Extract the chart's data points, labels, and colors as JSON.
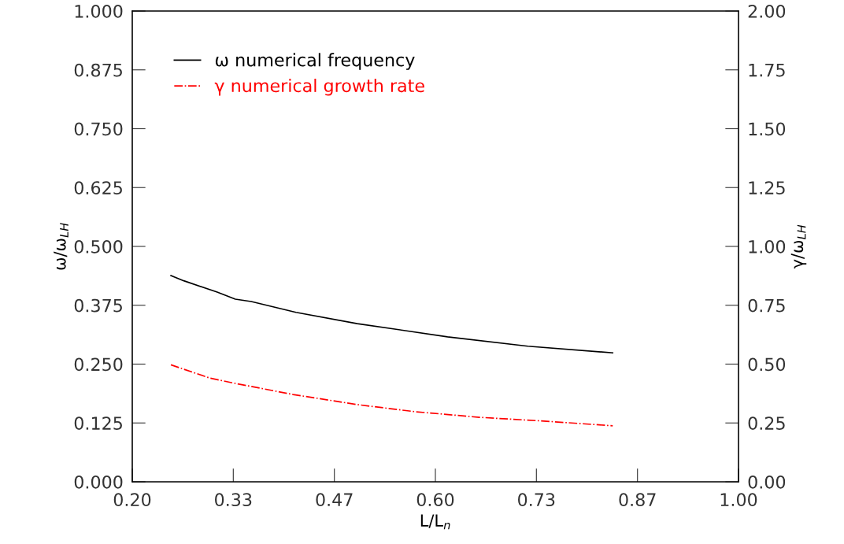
{
  "chart_data": {
    "type": "line",
    "xlabel": "L/L$_{n}$",
    "ylabel": "ω/ω$_{LH}$",
    "y2label": "γ/ω$_{LH}$",
    "xlim": [
      0.2,
      1.0
    ],
    "xticks": [
      {
        "value": 0.2,
        "label": "0.20"
      },
      {
        "value": 0.3333,
        "label": "0.33"
      },
      {
        "value": 0.4667,
        "label": "0.47"
      },
      {
        "value": 0.6,
        "label": "0.60"
      },
      {
        "value": 0.7333,
        "label": "0.73"
      },
      {
        "value": 0.8667,
        "label": "0.87"
      },
      {
        "value": 1.0,
        "label": "1.00"
      }
    ],
    "ylim": [
      0,
      1
    ],
    "yticks": [
      {
        "value": 0,
        "label": "0.000"
      },
      0.125,
      {
        "value": 0.25,
        "label": "0.250"
      },
      0.375,
      {
        "value": 0.5,
        "label": "0.500"
      },
      0.625,
      {
        "value": 0.75,
        "label": "0.750"
      },
      0.875,
      {
        "value": 1.0,
        "label": "1.000"
      }
    ],
    "y2lim": [
      0,
      2
    ],
    "y2ticks": [
      {
        "value": 0,
        "label": "0.00"
      },
      0.25,
      {
        "value": 0.5,
        "label": "0.50"
      },
      0.75,
      {
        "value": 1.0,
        "label": "1.00"
      },
      1.25,
      {
        "value": 1.5,
        "label": "1.50"
      },
      1.75,
      {
        "value": 2.0,
        "label": "2.00"
      }
    ],
    "legend": "top left",
    "grid": false,
    "series": [
      {
        "name": "ω numerical frequency",
        "color": "#000000",
        "line_style": "solid",
        "x": [
          0.251,
          0.268,
          0.312,
          0.336,
          0.357,
          0.416,
          0.497,
          0.616,
          0.722,
          0.834
        ],
        "values": [
          0.438,
          0.427,
          0.403,
          0.388,
          0.383,
          0.36,
          0.336,
          0.308,
          0.288,
          0.274
        ]
      },
      {
        "name": "γ numerical growth rate",
        "color": "#ff0000",
        "line_style": "dashdot",
        "axis": "y2",
        "x": [
          0.251,
          0.302,
          0.336,
          0.412,
          0.497,
          0.573,
          0.658,
          0.743,
          0.834
        ],
        "values": [
          0.497,
          0.441,
          0.418,
          0.371,
          0.328,
          0.298,
          0.274,
          0.258,
          0.238
        ]
      }
    ]
  }
}
